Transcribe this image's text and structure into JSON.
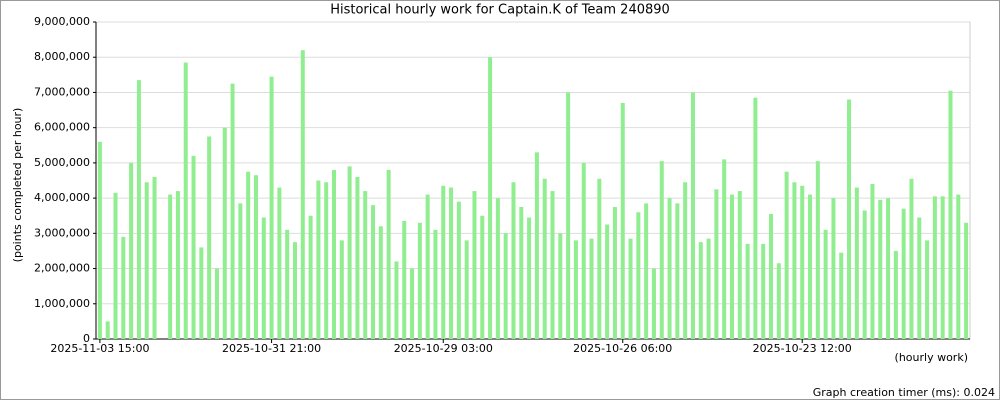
{
  "chart_data": {
    "type": "bar",
    "title": "Historical hourly work for Captain.K of Team 240890",
    "y_label": "(points completed per hour)",
    "x_label": "(hourly work)",
    "footer": "Graph creation timer (ms): 0.024",
    "color": "#90ee90",
    "grid": true,
    "categories": [
      "2025-11-03 15:00",
      null,
      null,
      null,
      null,
      null,
      null,
      null,
      null,
      null,
      null,
      null,
      null,
      null,
      null,
      null,
      null,
      null,
      null,
      null,
      null,
      null,
      "2025-10-31 21:00",
      null,
      null,
      null,
      null,
      null,
      null,
      null,
      null,
      null,
      null,
      null,
      null,
      null,
      null,
      null,
      null,
      null,
      null,
      null,
      null,
      null,
      "2025-10-29 03:00",
      null,
      null,
      null,
      null,
      null,
      null,
      null,
      null,
      null,
      null,
      null,
      null,
      null,
      null,
      null,
      null,
      null,
      null,
      null,
      null,
      null,
      null,
      "2025-10-26 06:00",
      null,
      null,
      null,
      null,
      null,
      null,
      null,
      null,
      null,
      null,
      null,
      null,
      null,
      null,
      null,
      null,
      null,
      null,
      null,
      null,
      null,
      null,
      "2025-10-23 12:00",
      null,
      null,
      null,
      null,
      null,
      null,
      null,
      null,
      null,
      null,
      null,
      null,
      null,
      null,
      null,
      null,
      null,
      null,
      null,
      null,
      null
    ],
    "values": [
      5600000,
      500000,
      4150000,
      2900000,
      5000000,
      7350000,
      4450000,
      4600000,
      0,
      4100000,
      4200000,
      7850000,
      5200000,
      2600000,
      5750000,
      2000000,
      6000000,
      7250000,
      3850000,
      4750000,
      4650000,
      3450000,
      7450000,
      4300000,
      3100000,
      2750000,
      8200000,
      3500000,
      4500000,
      4450000,
      4800000,
      2800000,
      4900000,
      4600000,
      4200000,
      3800000,
      3200000,
      4800000,
      2200000,
      3350000,
      2000000,
      3300000,
      4100000,
      3100000,
      4350000,
      4300000,
      3900000,
      2800000,
      4200000,
      3500000,
      8000000,
      4000000,
      3000000,
      4450000,
      3750000,
      3450000,
      5300000,
      4550000,
      4200000,
      3000000,
      7000000,
      2800000,
      5000000,
      2850000,
      4550000,
      3250000,
      3750000,
      6700000,
      2850000,
      3600000,
      3850000,
      2000000,
      5050000,
      4000000,
      3850000,
      4450000,
      7000000,
      2750000,
      2850000,
      4250000,
      5100000,
      4100000,
      4200000,
      2700000,
      6850000,
      2700000,
      3550000,
      2150000,
      4750000,
      4450000,
      4350000,
      4100000,
      5050000,
      3100000,
      4000000,
      2450000,
      6800000,
      4300000,
      3650000,
      4400000,
      3950000,
      4000000,
      2500000,
      3700000,
      4550000,
      3450000,
      2800000,
      4050000,
      4050000,
      7050000,
      4100000,
      3300000
    ],
    "ylim": [
      0,
      9000000
    ],
    "yticks": [
      0,
      {
        "value": 1000000,
        "label": "1,000,000"
      },
      {
        "value": 2000000,
        "label": "2,000,000"
      },
      {
        "value": 3000000,
        "label": "3,000,000"
      },
      {
        "value": 4000000,
        "label": "4,000,000"
      },
      {
        "value": 5000000,
        "label": "5,000,000"
      },
      {
        "value": 6000000,
        "label": "6,000,000"
      },
      {
        "value": 7000000,
        "label": "7,000,000"
      },
      {
        "value": 8000000,
        "label": "8,000,000"
      },
      {
        "value": 9000000,
        "label": "9,000,000"
      }
    ]
  }
}
